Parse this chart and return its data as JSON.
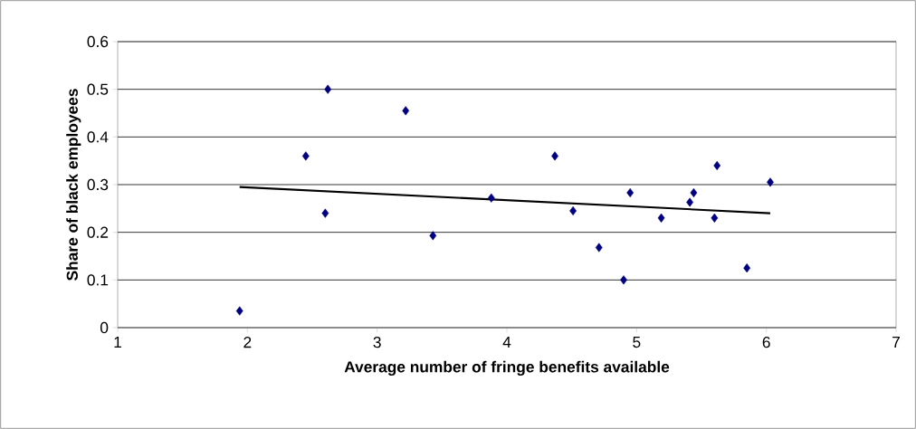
{
  "chart_data": {
    "type": "scatter",
    "xlabel": "Average number of fringe benefits available",
    "ylabel": "Share of black employees",
    "xlim": [
      1,
      7
    ],
    "xticks": [
      1,
      2,
      3,
      4,
      5,
      6,
      7
    ],
    "ylim": [
      0,
      0.6
    ],
    "yticks": [
      0,
      0.1,
      0.2,
      0.3,
      0.4,
      0.5,
      0.6
    ],
    "grid": "y",
    "marker": "diamond",
    "series": [
      {
        "color": "#000080",
        "x": [
          1.94,
          2.45,
          2.6,
          2.62,
          3.22,
          3.43,
          3.88,
          4.37,
          4.51,
          4.71,
          4.9,
          4.95,
          5.19,
          5.41,
          5.44,
          5.6,
          5.62,
          5.85,
          6.03
        ],
        "values": [
          0.035,
          0.36,
          0.24,
          0.5,
          0.455,
          0.193,
          0.272,
          0.36,
          0.245,
          0.168,
          0.1,
          0.283,
          0.23,
          0.263,
          0.283,
          0.23,
          0.34,
          0.125,
          0.305
        ]
      },
      {
        "type": "line",
        "color": "#000000",
        "marker": "none",
        "line_style": "solid",
        "x": [
          1.94,
          6.03
        ],
        "values": [
          0.295,
          0.24
        ]
      }
    ]
  }
}
